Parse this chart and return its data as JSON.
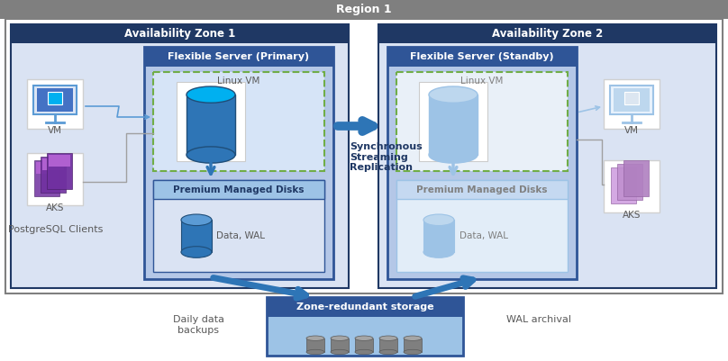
{
  "title": "Region 1",
  "az1_label": "Availability Zone 1",
  "az2_label": "Availability Zone 2",
  "flex_primary_label": "Flexible Server (Primary)",
  "flex_standby_label": "Flexible Server (Standby)",
  "linux_vm_label": "Linux VM",
  "premium_disk_label": "Premium Managed Disks",
  "data_wal_label": "Data, WAL",
  "sync_label": "Synchronous\nStreaming\nReplication",
  "zone_redundant_label": "Zone-redundant storage",
  "daily_backup_label": "Daily data\nbackups",
  "wal_archival_label": "WAL archival",
  "pg_clients_label": "PostgreSQL Clients",
  "vm_label": "VM",
  "aks_label": "AKS",
  "title_bg": "#7f7f7f",
  "region_border": "#7f7f7f",
  "region_bg": "#ffffff",
  "az_header_bg": "#1f3864",
  "az_body_bg": "#dae3f3",
  "az_border": "#1f3864",
  "flex_header_bg": "#2f5597",
  "flex_body_bg": "#b4c7e7",
  "flex_border": "#2f5597",
  "linuxvm_bg": "#d6e4f7",
  "linuxvm_border": "#70ad47",
  "pmd_header_bg": "#9dc3e6",
  "pmd_body_bg": "#dae3f3",
  "pmd_border": "#9dc3e6",
  "zrs_header_bg": "#2f5597",
  "zrs_body_bg": "#9dc3e6",
  "zrs_border": "#2f5597",
  "cyl_primary_body": "#2e75b6",
  "cyl_primary_top": "#00b0f0",
  "cyl_primary_dark": "#1f4e79",
  "cyl_standby_body": "#9dc3e6",
  "cyl_standby_top": "#bdd7ee",
  "cyl_standby_dark": "#9dc3e6",
  "db_primary_body": "#2e75b6",
  "db_primary_top": "#5b9bd5",
  "db_standby_body": "#9dc3e6",
  "db_standby_top": "#bdd7ee",
  "db_zrs_body": "#808080",
  "db_zrs_top": "#a6a6a6",
  "arrow_main": "#2e75b6",
  "arrow_light": "#9dc3e6",
  "text_dark": "#1f3864",
  "text_mid": "#595959",
  "text_light": "#808080",
  "white": "#ffffff"
}
